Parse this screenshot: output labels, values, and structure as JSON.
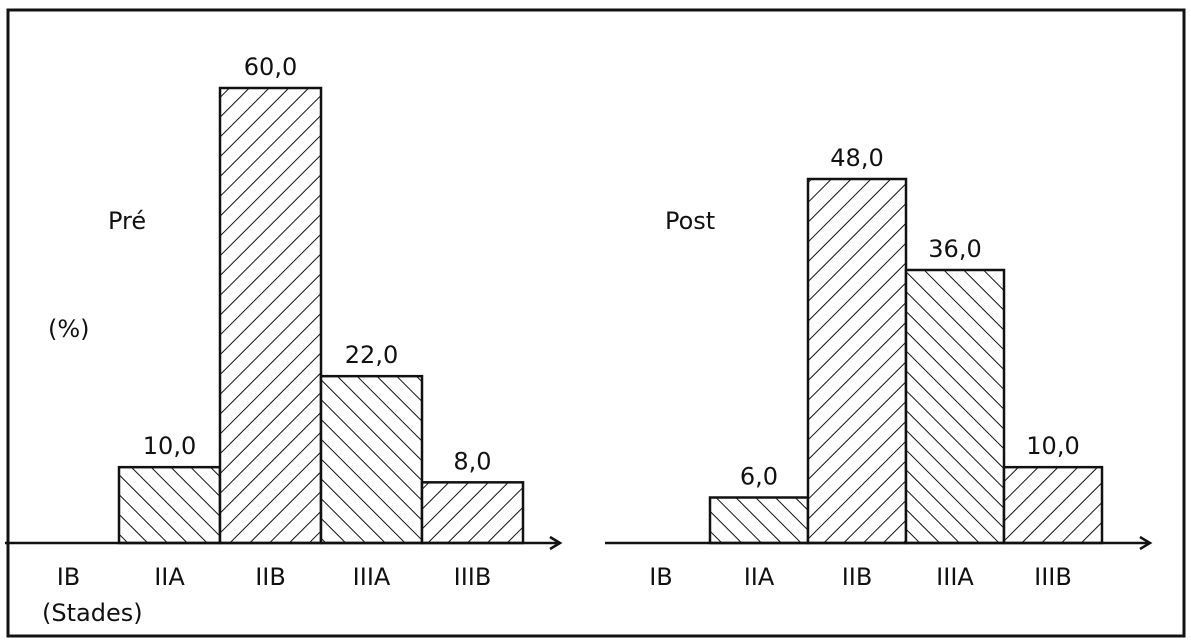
{
  "chart_data": [
    {
      "type": "bar",
      "title": "Pré",
      "y_label": "(%)",
      "x_label": "(Stades)",
      "categories": [
        "IB",
        "IIA",
        "IIB",
        "IIIA",
        "IIIB"
      ],
      "values": [
        null,
        10,
        60,
        22,
        8
      ],
      "value_labels": [
        null,
        "10,0",
        "60,0",
        "22,0",
        "8,0"
      ],
      "ylim": [
        0,
        60
      ],
      "color": "#ffffff"
    },
    {
      "type": "bar",
      "title": "Post",
      "categories": [
        "IB",
        "IIA",
        "IIB",
        "IIIA",
        "IIIB"
      ],
      "values": [
        null,
        6,
        48,
        36,
        10
      ],
      "value_labels": [
        null,
        "6,0",
        "48,0",
        "36,0",
        "10,0"
      ],
      "ylim": [
        0,
        60
      ],
      "color": "#ffffff"
    }
  ]
}
